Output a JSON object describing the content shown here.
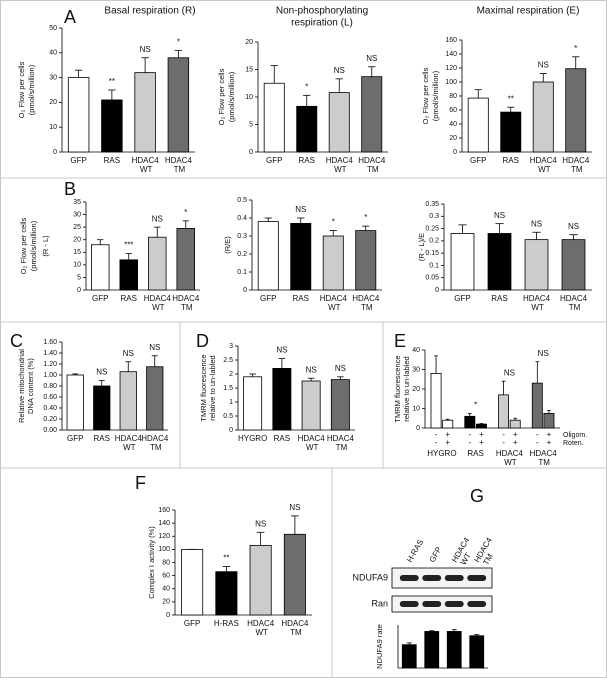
{
  "chart_data": [
    {
      "panel": "A",
      "type": "bar",
      "title": "Basal respiration (R)",
      "y_label": [
        "O₂ Flow per cells",
        "(pmol/s/million)"
      ],
      "categories": [
        "GFP",
        "RAS",
        "HDAC4 WT",
        "HDAC4 TM"
      ],
      "colors": [
        "#ffffff",
        "#000000",
        "#cccccc",
        "#6d6d6d"
      ],
      "series": [
        {
          "values": [
            30,
            21,
            32,
            38
          ],
          "errors": [
            3,
            4,
            6,
            3
          ]
        }
      ],
      "annotations": [
        null,
        "**",
        "NS",
        "*"
      ],
      "ylim": [
        0,
        50
      ],
      "yticks": [
        0,
        10,
        20,
        30,
        40,
        50
      ]
    },
    {
      "type": "bar",
      "title": [
        "Non-phosphorylating",
        "respiration (L)"
      ],
      "y_label": [
        "O₂ Flow per cells",
        "(pmol/s/million)"
      ],
      "categories": [
        "GFP",
        "RAS",
        "HDAC4 WT",
        "HDAC4 TM"
      ],
      "colors": [
        "#ffffff",
        "#000000",
        "#cccccc",
        "#6d6d6d"
      ],
      "series": [
        {
          "values": [
            12.5,
            8.3,
            10.8,
            13.7
          ],
          "errors": [
            3.2,
            2,
            2.5,
            1.8
          ]
        }
      ],
      "annotations": [
        null,
        "*",
        "NS",
        "NS"
      ],
      "ylim": [
        0,
        20
      ],
      "yticks": [
        0,
        5,
        10,
        15,
        20
      ]
    },
    {
      "type": "bar",
      "title": "Maximal respiration (E)",
      "y_label": [
        "O₂ Flow per cells",
        "(pmol/s/million)"
      ],
      "categories": [
        "GFP",
        "RAS",
        "HDAC4 WT",
        "HDAC4 TM"
      ],
      "colors": [
        "#ffffff",
        "#000000",
        "#cccccc",
        "#6d6d6d"
      ],
      "series": [
        {
          "values": [
            77,
            57,
            100,
            119
          ],
          "errors": [
            12,
            7,
            12,
            17
          ]
        }
      ],
      "annotations": [
        null,
        "**",
        "NS",
        "*"
      ],
      "ylim": [
        0,
        160
      ],
      "yticks": [
        0,
        20,
        40,
        60,
        80,
        100,
        120,
        140,
        160
      ]
    },
    {
      "panel": "B",
      "type": "bar",
      "y_label": [
        "O₂ Flow per cells",
        "(pmol/s/million)",
        "(R - L)"
      ],
      "categories": [
        "GFP",
        "RAS",
        "HDAC4 WT",
        "HDAC4 TM"
      ],
      "colors": [
        "#ffffff",
        "#000000",
        "#cccccc",
        "#6d6d6d"
      ],
      "series": [
        {
          "values": [
            18,
            12,
            21,
            24.5
          ],
          "errors": [
            2,
            2.5,
            4,
            3
          ]
        }
      ],
      "annotations": [
        null,
        "***",
        "NS",
        "*"
      ],
      "ylim": [
        0,
        35
      ],
      "yticks": [
        0,
        5,
        10,
        15,
        20,
        25,
        30,
        35
      ]
    },
    {
      "type": "bar",
      "y_label": [
        "(R/E)"
      ],
      "categories": [
        "GFP",
        "RAS",
        "HDAC4 WT",
        "HDAC4 TM"
      ],
      "colors": [
        "#ffffff",
        "#000000",
        "#cccccc",
        "#6d6d6d"
      ],
      "series": [
        {
          "values": [
            0.38,
            0.37,
            0.3,
            0.33
          ],
          "errors": [
            0.02,
            0.03,
            0.03,
            0.025
          ]
        }
      ],
      "annotations": [
        null,
        "NS",
        "*",
        "*"
      ],
      "ylim": [
        0,
        0.5
      ],
      "yticks": [
        0,
        0.1,
        0.2,
        0.3,
        0.4,
        0.5
      ]
    },
    {
      "type": "bar",
      "y_label": [
        "(R - L)/E"
      ],
      "categories": [
        "GFP",
        "RAS",
        "HDAC4 WT",
        "HDAC4 TM"
      ],
      "colors": [
        "#ffffff",
        "#000000",
        "#cccccc",
        "#6d6d6d"
      ],
      "series": [
        {
          "values": [
            0.23,
            0.23,
            0.205,
            0.205
          ],
          "errors": [
            0.035,
            0.04,
            0.03,
            0.02
          ]
        }
      ],
      "annotations": [
        null,
        "NS",
        "NS",
        "NS"
      ],
      "ylim": [
        0,
        0.35
      ],
      "yticks": [
        0,
        0.05,
        0.1,
        0.15,
        0.2,
        0.25,
        0.3,
        0.35
      ]
    },
    {
      "panel": "C",
      "type": "bar",
      "y_label": [
        "Relative mitochondrial",
        "DNA content (%)"
      ],
      "categories": [
        "GFP",
        "RAS",
        "HDAC4 WT",
        "HDAC4 TM"
      ],
      "colors": [
        "#ffffff",
        "#000000",
        "#cccccc",
        "#6d6d6d"
      ],
      "series": [
        {
          "values": [
            1.0,
            0.8,
            1.06,
            1.15
          ],
          "errors": [
            0.02,
            0.1,
            0.18,
            0.2
          ]
        }
      ],
      "annotations": [
        null,
        "NS",
        "NS",
        "NS"
      ],
      "ylim": [
        0,
        1.6
      ],
      "yticks": [
        {
          "value": 0,
          "label": "0.00"
        },
        {
          "value": 0.2,
          "label": "0.20"
        },
        {
          "value": 0.4,
          "label": "0.40"
        },
        {
          "value": 0.6,
          "label": "0.60"
        },
        {
          "value": 0.8,
          "label": "0.80"
        },
        {
          "value": 1,
          "label": "1.00"
        },
        {
          "value": 1.2,
          "label": "1.20"
        },
        {
          "value": 1.4,
          "label": "1.40"
        },
        {
          "value": 1.6,
          "label": "1.60"
        }
      ]
    },
    {
      "panel": "D",
      "type": "bar",
      "y_label": [
        "TMRM fluorescence",
        "relative to un-labled"
      ],
      "categories": [
        "HYGRO",
        "RAS",
        "HDAC4 WT",
        "HDAC4 TM"
      ],
      "colors": [
        "#ffffff",
        "#000000",
        "#cccccc",
        "#6d6d6d"
      ],
      "series": [
        {
          "values": [
            1.9,
            2.2,
            1.75,
            1.8
          ],
          "errors": [
            0.1,
            0.35,
            0.1,
            0.1
          ]
        }
      ],
      "annotations": [
        null,
        "NS",
        "NS",
        "NS"
      ],
      "ylim": [
        0,
        3
      ],
      "yticks": [
        0,
        0.5,
        1,
        1.5,
        2,
        2.5,
        3
      ]
    },
    {
      "panel": "E",
      "type": "bar",
      "y_label": [
        "TMRM fluorescence",
        "relative to un-labled"
      ],
      "categories": [
        "HYGRO",
        "RAS",
        "HDAC4 WT",
        "HDAC4 TM"
      ],
      "colors": [
        "#ffffff",
        "#000000",
        "#cccccc",
        "#6d6d6d"
      ],
      "series": [
        {
          "values": [
            28,
            6,
            17,
            23
          ],
          "errors": [
            9,
            1.5,
            7,
            11
          ]
        },
        {
          "values": [
            4,
            2,
            4,
            7.5
          ],
          "errors": [
            0.5,
            0.3,
            1,
            1.5
          ]
        }
      ],
      "annotations": [
        null,
        "*",
        "NS",
        "NS"
      ],
      "conditions": [
        {
          "label": "Oligom.",
          "signs": [
            "-",
            "+"
          ]
        },
        {
          "label": "Roten.",
          "signs": [
            "-",
            "+"
          ]
        }
      ],
      "ylim": [
        0,
        40
      ],
      "yticks": [
        0,
        10,
        20,
        30,
        40
      ]
    },
    {
      "panel": "F",
      "type": "bar",
      "y_label": [
        "Complex I activity (%)"
      ],
      "categories": [
        "GFP",
        "H-RAS",
        "HDAC4 WT",
        "HDAC4 TM"
      ],
      "colors": [
        "#ffffff",
        "#000000",
        "#cccccc",
        "#6d6d6d"
      ],
      "series": [
        {
          "values": [
            100,
            66,
            106,
            123
          ],
          "errors": [
            0,
            8,
            20,
            28
          ]
        }
      ],
      "annotations": [
        null,
        "**",
        "NS",
        "NS"
      ],
      "ylim": [
        0,
        160
      ],
      "yticks": [
        0,
        20,
        40,
        60,
        80,
        100,
        120,
        140,
        160
      ]
    },
    {
      "panel": "G",
      "type": "bar",
      "y_label": [
        "NDUFA9 rate"
      ],
      "blot_labels": [
        "NDUFA9",
        "Ran"
      ],
      "categories": [
        "H-RAS",
        "GFP",
        "HDAC4 WT",
        "HDAC4 TM"
      ],
      "colors": [
        "#000000",
        "#000000",
        "#000000",
        "#000000"
      ],
      "series": [
        {
          "values": [
            0.65,
            1.02,
            1.02,
            0.9
          ],
          "errors": [
            0.05,
            0.02,
            0.05,
            0.03
          ]
        }
      ],
      "ylim": [
        0,
        1.2
      ]
    }
  ]
}
